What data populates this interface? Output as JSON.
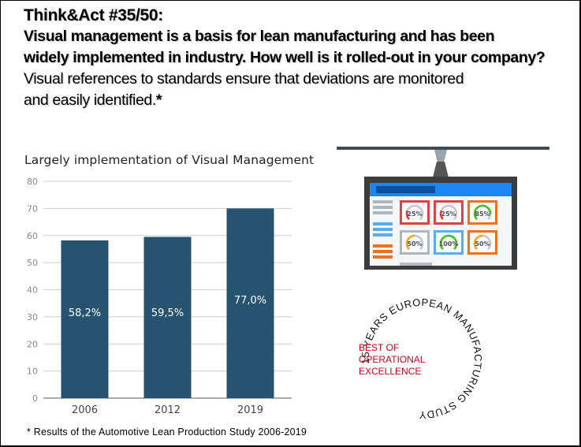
{
  "header": {
    "title": "Think&Act #35/50:",
    "bold_line_1": "Visual management is a basis for lean manufacturing and has been",
    "bold_line_2": "widely implemented in industry. How well is it rolled-out in your company?",
    "normal_line_1": "Visual references to standards ensure that deviations are monitored",
    "normal_line_2": "and easily identified.",
    "asterisk": "*"
  },
  "chart_data": {
    "type": "bar",
    "title": "Largely implementation of Visual Management",
    "xlabel": "",
    "ylabel": "",
    "categories": [
      "2006",
      "2012",
      "2019"
    ],
    "values": [
      58.2,
      59.5,
      77.0
    ],
    "data_labels": [
      "58,2%",
      "59,5%",
      "77,0%"
    ],
    "ylim": [
      0,
      80
    ],
    "yticks": [
      0,
      10,
      20,
      30,
      40,
      50,
      60,
      70,
      80
    ],
    "ytick_labels": [
      "0",
      "10",
      "20",
      "30",
      "40",
      "50",
      "60",
      "70",
      "80"
    ],
    "grid": true,
    "legend": "none",
    "bar_color": "#26536f",
    "grid_color": "#cfcfcf"
  },
  "footnote": "* Results of the Automotive Lean Production Study 2006-2019",
  "illustration": {
    "gauges": [
      {
        "label": "25%",
        "value": 25,
        "arc_color": "#e5383b",
        "border_color": "#d9434a",
        "tile_bg_border": "#b0b6be"
      },
      {
        "label": "25%",
        "value": 25,
        "arc_color": "#e5383b",
        "border_color": "#d9434a",
        "tile_bg_border": "#5aaef0"
      },
      {
        "label": "85%",
        "value": 85,
        "arc_color": "#3cc21c",
        "border_color": "#e8741e",
        "tile_bg_border": "#e8741e"
      },
      {
        "label": "50%",
        "value": 50,
        "arc_color": "#f5a81c",
        "border_color": "#b0b6be",
        "tile_bg_border": "#b0b6be"
      },
      {
        "label": "100%",
        "value": 100,
        "arc_color": "#3cc21c",
        "border_color": "#5aaef0",
        "tile_bg_border": "#5aaef0"
      },
      {
        "label": "50%",
        "value": 50,
        "arc_color": "#f5a81c",
        "border_color": "#e8741e",
        "tile_bg_border": "#e8741e"
      }
    ]
  },
  "badge": {
    "ring_text": "15 YEARS EUROPEAN MANUFACTURING STUDY",
    "inner_lines": [
      "BEST OF",
      "OPERATIONAL",
      "EXCELLENCE"
    ],
    "inner_color": "#d0021b"
  }
}
